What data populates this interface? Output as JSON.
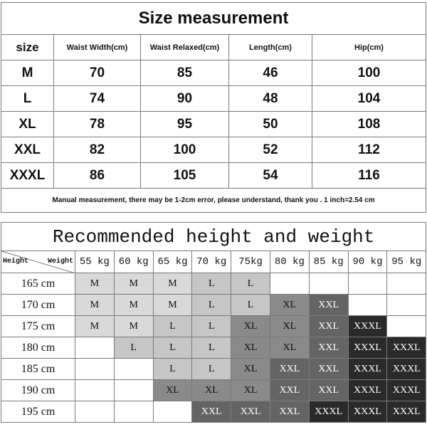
{
  "size_table": {
    "title": "Size measurement",
    "headers": [
      "size",
      "Waist Width(cm)",
      "Waist Relaxed(cm)",
      "Length(cm)",
      "Hip(cm)"
    ],
    "rows": [
      [
        "M",
        "70",
        "85",
        "46",
        "100"
      ],
      [
        "L",
        "74",
        "90",
        "48",
        "104"
      ],
      [
        "XL",
        "78",
        "95",
        "50",
        "108"
      ],
      [
        "XXL",
        "82",
        "100",
        "52",
        "112"
      ],
      [
        "XXXL",
        "86",
        "105",
        "54",
        "116"
      ]
    ],
    "note": "Manual measurement, there may be 1-2cm error, please understand, thank you .   1 inch=2.54 cm"
  },
  "recommend_table": {
    "title": "Recommended height and weight",
    "corner_height": "Height",
    "corner_weight": "Weight",
    "weights": [
      "55 kg",
      "60 kg",
      "65 kg",
      "70 kg",
      "75kg",
      "80 kg",
      "85 kg",
      "90 kg",
      "95 kg"
    ],
    "rows": [
      {
        "height": "165 cm",
        "sizes": [
          "M",
          "M",
          "M",
          "L",
          "L",
          "",
          "",
          "",
          ""
        ]
      },
      {
        "height": "170 cm",
        "sizes": [
          "M",
          "M",
          "M",
          "L",
          "L",
          "XL",
          "XXL",
          "",
          ""
        ]
      },
      {
        "height": "175 cm",
        "sizes": [
          "M",
          "M",
          "L",
          "L",
          "XL",
          "XL",
          "XXL",
          "XXXL",
          ""
        ]
      },
      {
        "height": "180 cm",
        "sizes": [
          "",
          "L",
          "L",
          "L",
          "XL",
          "XL",
          "XXL",
          "XXXL",
          "XXXL"
        ]
      },
      {
        "height": "185 cm",
        "sizes": [
          "",
          "",
          "L",
          "L",
          "XL",
          "XXL",
          "XXL",
          "XXXL",
          "XXXL"
        ]
      },
      {
        "height": "190 cm",
        "sizes": [
          "",
          "",
          "XL",
          "XL",
          "XL",
          "XXL",
          "XXL",
          "XXXL",
          "XXXL"
        ]
      },
      {
        "height": "195 cm",
        "sizes": [
          "",
          "",
          "",
          "XXL",
          "XXL",
          "XXL",
          "XXXL",
          "XXXL",
          "XXXL"
        ]
      }
    ],
    "size_colors": {
      "M": "#d9d9d9",
      "L": "#c6c6c6",
      "XL": "#8a8a8a",
      "XXL": "#646464",
      "XXXL": "#2a2a2a"
    },
    "size_text_colors": {
      "M": "#111111",
      "L": "#111111",
      "XL": "#111111",
      "XXL": "#ffffff",
      "XXXL": "#ffffff"
    }
  }
}
